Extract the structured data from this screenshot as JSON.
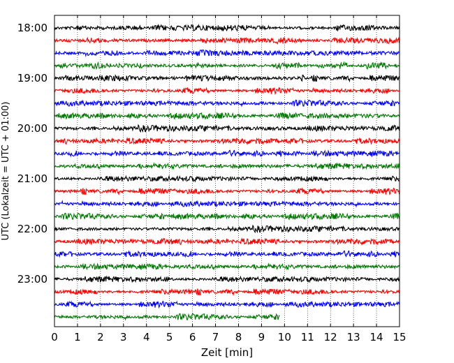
{
  "chart_data": {
    "type": "line",
    "xlabel": "Zeit  [min]",
    "ylabel": "UTC (Lokalzeit = UTC + 01:00)",
    "xlim": [
      0,
      15
    ],
    "x_ticks": [
      "0",
      "1",
      "2",
      "3",
      "4",
      "5",
      "6",
      "7",
      "8",
      "9",
      "10",
      "11",
      "12",
      "13",
      "14",
      "15"
    ],
    "y_ticks": [
      "18:00",
      "19:00",
      "20:00",
      "21:00",
      "22:00",
      "23:00"
    ],
    "grid": "vertical dotted",
    "trace_minutes": 15,
    "traces_per_hour": 4,
    "trace_colors": [
      "#000000",
      "#ff0000",
      "#0000ff",
      "#007700"
    ],
    "traces": [
      {
        "start": "18:00",
        "end_min": 15
      },
      {
        "start": "18:15",
        "end_min": 15
      },
      {
        "start": "18:30",
        "end_min": 15
      },
      {
        "start": "18:45",
        "end_min": 15
      },
      {
        "start": "19:00",
        "end_min": 15
      },
      {
        "start": "19:15",
        "end_min": 15
      },
      {
        "start": "19:30",
        "end_min": 15
      },
      {
        "start": "19:45",
        "end_min": 15
      },
      {
        "start": "20:00",
        "end_min": 15
      },
      {
        "start": "20:15",
        "end_min": 15
      },
      {
        "start": "20:30",
        "end_min": 15
      },
      {
        "start": "20:45",
        "end_min": 15
      },
      {
        "start": "21:00",
        "end_min": 15
      },
      {
        "start": "21:15",
        "end_min": 15
      },
      {
        "start": "21:30",
        "end_min": 15
      },
      {
        "start": "21:45",
        "end_min": 15
      },
      {
        "start": "22:00",
        "end_min": 15
      },
      {
        "start": "22:15",
        "end_min": 15
      },
      {
        "start": "22:30",
        "end_min": 15
      },
      {
        "start": "22:45",
        "end_min": 15
      },
      {
        "start": "23:00",
        "end_min": 15
      },
      {
        "start": "23:15",
        "end_min": 15
      },
      {
        "start": "23:30",
        "end_min": 15
      },
      {
        "start": "23:45",
        "end_min": 9.8
      }
    ]
  }
}
